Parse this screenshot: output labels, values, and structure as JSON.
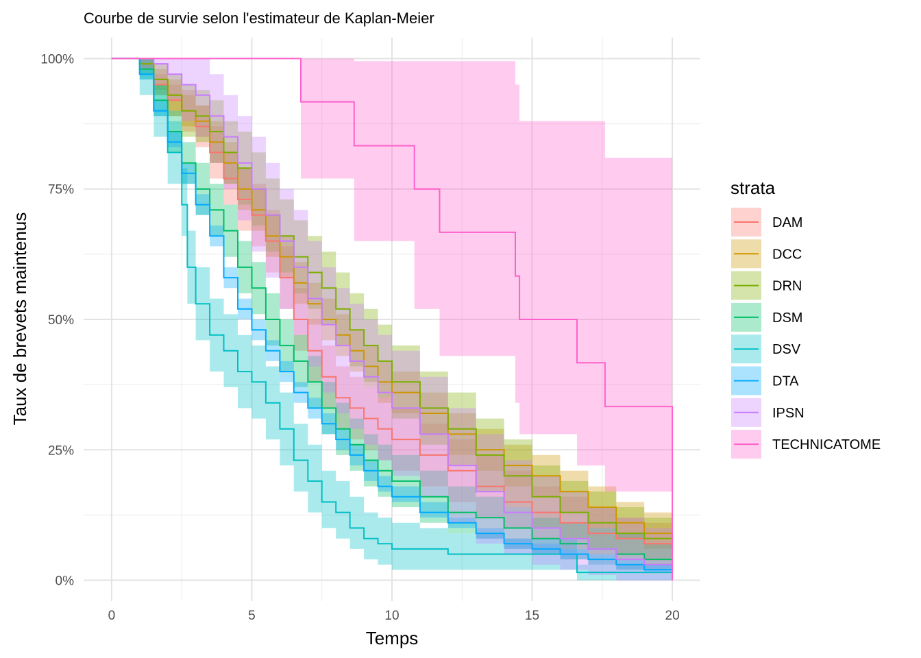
{
  "chart_data": {
    "type": "line",
    "title": "Courbe de survie selon l'estimateur de Kaplan-Meier",
    "xlabel": "Temps",
    "ylabel": "Taux de brevets maintenus",
    "xlim": [
      -1,
      21
    ],
    "ylim": [
      -0.04,
      1.04
    ],
    "x_ticks": [
      0,
      5,
      10,
      15,
      20
    ],
    "x_tick_labels": [
      "0",
      "5",
      "10",
      "15",
      "20"
    ],
    "y_ticks": [
      0,
      0.25,
      0.5,
      0.75,
      1
    ],
    "y_tick_labels": [
      "0%",
      "25%",
      "50%",
      "75%",
      "100%"
    ],
    "grid": true,
    "legend": {
      "title": "strata",
      "position": "right"
    },
    "series": [
      {
        "name": "DAM",
        "color": "#F8766D",
        "x": [
          0,
          1,
          1.5,
          2,
          2.5,
          3,
          3.5,
          4,
          4.5,
          5,
          5.5,
          6,
          6.5,
          7,
          7.5,
          8,
          8.5,
          9,
          9.5,
          10,
          11,
          12,
          13,
          14,
          15,
          16,
          17,
          18,
          19,
          20
        ],
        "y": [
          1,
          0.99,
          0.95,
          0.92,
          0.9,
          0.87,
          0.82,
          0.77,
          0.73,
          0.7,
          0.65,
          0.58,
          0.5,
          0.44,
          0.39,
          0.35,
          0.33,
          0.31,
          0.29,
          0.27,
          0.24,
          0.21,
          0.18,
          0.15,
          0.13,
          0.11,
          0.09,
          0.08,
          0.07,
          0.05
        ],
        "lower": [
          1,
          0.98,
          0.93,
          0.89,
          0.86,
          0.83,
          0.77,
          0.72,
          0.67,
          0.64,
          0.59,
          0.52,
          0.44,
          0.38,
          0.33,
          0.29,
          0.27,
          0.25,
          0.23,
          0.21,
          0.18,
          0.15,
          0.12,
          0.1,
          0.08,
          0.06,
          0.05,
          0.04,
          0.03,
          0.02
        ],
        "upper": [
          1,
          1,
          0.97,
          0.95,
          0.94,
          0.91,
          0.87,
          0.82,
          0.79,
          0.76,
          0.71,
          0.64,
          0.56,
          0.5,
          0.45,
          0.41,
          0.39,
          0.37,
          0.35,
          0.33,
          0.3,
          0.27,
          0.24,
          0.21,
          0.18,
          0.16,
          0.14,
          0.12,
          0.11,
          0.09
        ]
      },
      {
        "name": "DCC",
        "color": "#CD9600",
        "x": [
          0,
          1,
          1.5,
          2,
          2.5,
          3,
          3.5,
          4,
          4.5,
          5,
          5.5,
          6,
          6.5,
          7,
          7.5,
          8,
          8.5,
          9,
          9.5,
          10,
          11,
          12,
          13,
          14,
          15,
          16,
          17,
          18,
          19,
          20
        ],
        "y": [
          1,
          0.99,
          0.96,
          0.93,
          0.9,
          0.88,
          0.84,
          0.8,
          0.75,
          0.71,
          0.66,
          0.62,
          0.57,
          0.53,
          0.5,
          0.47,
          0.44,
          0.41,
          0.38,
          0.36,
          0.32,
          0.28,
          0.25,
          0.22,
          0.2,
          0.17,
          0.14,
          0.11,
          0.09,
          0.07
        ],
        "lower": [
          1,
          0.98,
          0.94,
          0.9,
          0.87,
          0.85,
          0.8,
          0.76,
          0.71,
          0.67,
          0.62,
          0.58,
          0.53,
          0.49,
          0.46,
          0.43,
          0.4,
          0.37,
          0.34,
          0.32,
          0.28,
          0.24,
          0.21,
          0.18,
          0.16,
          0.13,
          0.1,
          0.08,
          0.06,
          0.04
        ],
        "upper": [
          1,
          1,
          0.98,
          0.96,
          0.93,
          0.91,
          0.88,
          0.84,
          0.79,
          0.75,
          0.7,
          0.66,
          0.61,
          0.57,
          0.54,
          0.51,
          0.48,
          0.45,
          0.42,
          0.4,
          0.36,
          0.32,
          0.29,
          0.26,
          0.24,
          0.21,
          0.18,
          0.15,
          0.13,
          0.11
        ]
      },
      {
        "name": "DRN",
        "color": "#7CAE00",
        "x": [
          0,
          1,
          1.5,
          2,
          2.5,
          3,
          3.5,
          4,
          4.5,
          5,
          5.5,
          6,
          6.5,
          7,
          7.5,
          8,
          8.5,
          9,
          9.5,
          10,
          11,
          12,
          13,
          14,
          15,
          16,
          17,
          18,
          19,
          20
        ],
        "y": [
          1,
          0.99,
          0.96,
          0.93,
          0.9,
          0.89,
          0.86,
          0.82,
          0.79,
          0.75,
          0.7,
          0.66,
          0.62,
          0.59,
          0.56,
          0.52,
          0.48,
          0.45,
          0.42,
          0.38,
          0.33,
          0.29,
          0.24,
          0.2,
          0.16,
          0.13,
          0.11,
          0.09,
          0.08,
          0.06
        ],
        "lower": [
          1,
          0.97,
          0.93,
          0.89,
          0.85,
          0.84,
          0.8,
          0.76,
          0.72,
          0.68,
          0.63,
          0.59,
          0.55,
          0.52,
          0.49,
          0.45,
          0.41,
          0.38,
          0.35,
          0.31,
          0.26,
          0.22,
          0.17,
          0.14,
          0.1,
          0.08,
          0.06,
          0.05,
          0.04,
          0.03
        ],
        "upper": [
          1,
          1,
          0.99,
          0.97,
          0.95,
          0.94,
          0.92,
          0.88,
          0.86,
          0.82,
          0.77,
          0.73,
          0.69,
          0.66,
          0.63,
          0.59,
          0.55,
          0.52,
          0.49,
          0.45,
          0.4,
          0.36,
          0.31,
          0.27,
          0.22,
          0.19,
          0.17,
          0.14,
          0.12,
          0.1
        ]
      },
      {
        "name": "DSM",
        "color": "#00BE67",
        "x": [
          0,
          1,
          1.5,
          2,
          2.5,
          3,
          3.5,
          4,
          4.5,
          5,
          5.5,
          6,
          6.5,
          7,
          7.5,
          8,
          8.5,
          9,
          9.5,
          10,
          11,
          12,
          13,
          14,
          15,
          16,
          17,
          18,
          19,
          20
        ],
        "y": [
          1,
          0.98,
          0.92,
          0.86,
          0.8,
          0.75,
          0.71,
          0.67,
          0.6,
          0.56,
          0.5,
          0.45,
          0.42,
          0.38,
          0.33,
          0.29,
          0.26,
          0.23,
          0.21,
          0.19,
          0.16,
          0.13,
          0.12,
          0.1,
          0.08,
          0.07,
          0.06,
          0.05,
          0.04,
          0.03
        ],
        "lower": [
          1,
          0.96,
          0.89,
          0.82,
          0.76,
          0.7,
          0.66,
          0.62,
          0.55,
          0.51,
          0.45,
          0.4,
          0.37,
          0.33,
          0.28,
          0.24,
          0.21,
          0.18,
          0.16,
          0.14,
          0.11,
          0.09,
          0.08,
          0.06,
          0.05,
          0.04,
          0.03,
          0.02,
          0.02,
          0.01
        ],
        "upper": [
          1,
          1,
          0.95,
          0.9,
          0.84,
          0.8,
          0.76,
          0.72,
          0.65,
          0.61,
          0.55,
          0.5,
          0.47,
          0.43,
          0.38,
          0.34,
          0.31,
          0.28,
          0.26,
          0.24,
          0.21,
          0.18,
          0.16,
          0.14,
          0.12,
          0.11,
          0.1,
          0.09,
          0.07,
          0.06
        ]
      },
      {
        "name": "DSV",
        "color": "#00BFC4",
        "x": [
          0,
          1,
          1.5,
          2,
          2.5,
          2.7,
          3,
          3.5,
          4,
          4.5,
          5,
          5.5,
          6,
          6.5,
          7,
          7.5,
          8,
          8.5,
          9,
          9.5,
          10,
          11,
          12,
          13,
          14,
          15,
          16,
          16.6,
          17,
          18,
          19,
          20
        ],
        "y": [
          1,
          0.97,
          0.9,
          0.82,
          0.72,
          0.6,
          0.53,
          0.47,
          0.44,
          0.4,
          0.38,
          0.34,
          0.29,
          0.23,
          0.19,
          0.15,
          0.13,
          0.1,
          0.08,
          0.07,
          0.06,
          0.06,
          0.05,
          0.05,
          0.05,
          0.05,
          0.05,
          0.015,
          0.015,
          0.015,
          0.015,
          0.015
        ],
        "lower": [
          1,
          0.93,
          0.85,
          0.76,
          0.66,
          0.53,
          0.46,
          0.4,
          0.37,
          0.33,
          0.31,
          0.27,
          0.22,
          0.17,
          0.13,
          0.1,
          0.08,
          0.06,
          0.04,
          0.03,
          0.02,
          0.02,
          0.02,
          0.02,
          0.02,
          0.02,
          0.02,
          0,
          0,
          0,
          0,
          0
        ],
        "upper": [
          1,
          1,
          0.95,
          0.88,
          0.79,
          0.67,
          0.6,
          0.54,
          0.51,
          0.47,
          0.45,
          0.41,
          0.36,
          0.3,
          0.26,
          0.21,
          0.19,
          0.16,
          0.13,
          0.12,
          0.11,
          0.1,
          0.09,
          0.09,
          0.08,
          0.08,
          0.08,
          0.03,
          0.03,
          0.03,
          0.03,
          0.03
        ]
      },
      {
        "name": "DTA",
        "color": "#00A9FF",
        "x": [
          0,
          1,
          1.5,
          2,
          2.5,
          3,
          3.5,
          4,
          4.5,
          5,
          5.5,
          6,
          6.5,
          7,
          7.5,
          8,
          8.5,
          9,
          9.5,
          10,
          11,
          12,
          13,
          14,
          15,
          16,
          17,
          18,
          19,
          20
        ],
        "y": [
          1,
          0.97,
          0.9,
          0.84,
          0.78,
          0.72,
          0.66,
          0.58,
          0.52,
          0.48,
          0.44,
          0.4,
          0.36,
          0.33,
          0.3,
          0.27,
          0.24,
          0.21,
          0.18,
          0.16,
          0.13,
          0.11,
          0.09,
          0.07,
          0.06,
          0.05,
          0.04,
          0.03,
          0.02,
          0.015
        ],
        "lower": [
          1,
          0.96,
          0.89,
          0.83,
          0.76,
          0.7,
          0.64,
          0.56,
          0.5,
          0.46,
          0.42,
          0.38,
          0.34,
          0.31,
          0.28,
          0.25,
          0.22,
          0.19,
          0.17,
          0.15,
          0.12,
          0.1,
          0.08,
          0.06,
          0.05,
          0.04,
          0.03,
          0.02,
          0.015,
          0.01
        ],
        "upper": [
          1,
          0.98,
          0.92,
          0.86,
          0.8,
          0.74,
          0.68,
          0.6,
          0.54,
          0.5,
          0.46,
          0.42,
          0.38,
          0.35,
          0.32,
          0.29,
          0.26,
          0.23,
          0.2,
          0.18,
          0.15,
          0.12,
          0.1,
          0.08,
          0.07,
          0.06,
          0.05,
          0.04,
          0.03,
          0.02
        ]
      },
      {
        "name": "IPSN",
        "color": "#C77CFF",
        "x": [
          0,
          1,
          1.5,
          2,
          2.5,
          3,
          3.5,
          4,
          4.5,
          5,
          5.5,
          6,
          6.5,
          7,
          7.5,
          8,
          8.5,
          9,
          9.5,
          10,
          11,
          12,
          13,
          14,
          15,
          16,
          17,
          18,
          19,
          20
        ],
        "y": [
          1,
          1,
          0.99,
          0.97,
          0.95,
          0.93,
          0.89,
          0.85,
          0.8,
          0.75,
          0.7,
          0.65,
          0.6,
          0.54,
          0.49,
          0.45,
          0.42,
          0.39,
          0.36,
          0.33,
          0.28,
          0.22,
          0.17,
          0.13,
          0.1,
          0.08,
          0.06,
          0.04,
          0.03,
          0.02
        ],
        "lower": [
          1,
          0.98,
          0.95,
          0.92,
          0.88,
          0.85,
          0.8,
          0.75,
          0.69,
          0.63,
          0.58,
          0.52,
          0.47,
          0.41,
          0.36,
          0.32,
          0.29,
          0.26,
          0.23,
          0.2,
          0.16,
          0.11,
          0.07,
          0.05,
          0.03,
          0.02,
          0.01,
          0,
          0,
          0
        ],
        "upper": [
          1,
          1,
          1,
          1,
          1,
          1,
          0.97,
          0.93,
          0.89,
          0.85,
          0.8,
          0.75,
          0.71,
          0.65,
          0.6,
          0.56,
          0.53,
          0.5,
          0.47,
          0.44,
          0.39,
          0.33,
          0.28,
          0.23,
          0.2,
          0.17,
          0.14,
          0.12,
          0.1,
          0.08
        ]
      },
      {
        "name": "TECHNICATOME",
        "color": "#FF61CC",
        "x": [
          0,
          6.75,
          8.65,
          10.8,
          11.7,
          14.4,
          14.55,
          16.6,
          17.6,
          20
        ],
        "y": [
          1,
          0.917,
          0.833,
          0.75,
          0.667,
          0.583,
          0.5,
          0.417,
          0.333,
          0
        ],
        "lower": [
          1,
          0.77,
          0.65,
          0.52,
          0.43,
          0.34,
          0.28,
          0.22,
          0.17,
          0.15
        ],
        "upper": [
          1,
          1,
          0.995,
          0.995,
          0.995,
          0.95,
          0.88,
          0.88,
          0.81,
          0.74
        ]
      }
    ]
  }
}
